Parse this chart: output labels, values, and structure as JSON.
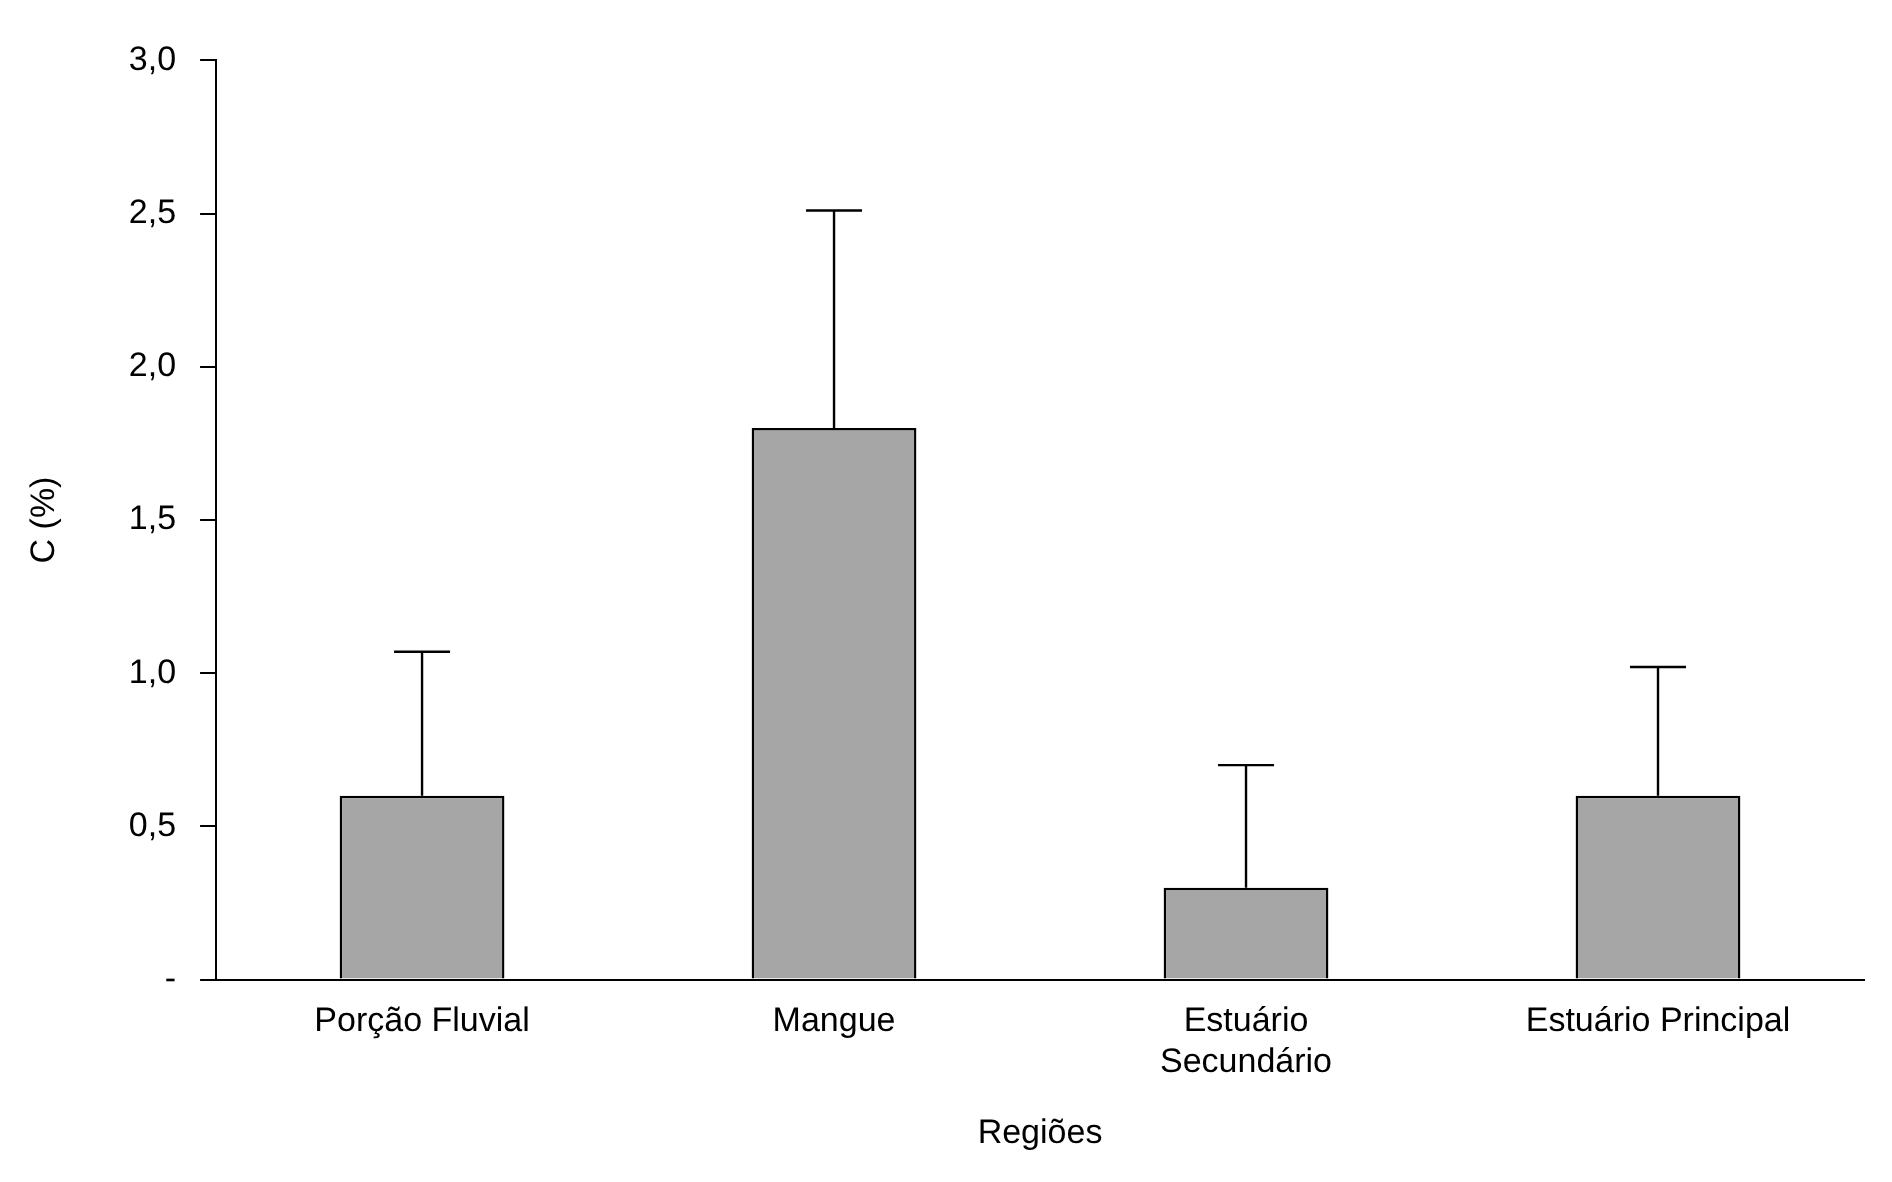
{
  "chart_data": {
    "type": "bar",
    "xlabel": "Regiões",
    "ylabel": "C (%)",
    "categories": [
      "Porção Fluvial",
      "Mangue",
      "Estuário Secundário",
      "Estuário Principal"
    ],
    "values": [
      0.6,
      1.8,
      0.3,
      0.6
    ],
    "errors": [
      [
        0.6,
        1.07
      ],
      [
        1.8,
        2.51
      ],
      [
        0.3,
        0.7
      ],
      [
        0.6,
        1.02
      ]
    ],
    "color": "#a6a6a6",
    "ylim": [
      0,
      3
    ],
    "yticks": [
      {
        "value": 0,
        "label": "-"
      },
      {
        "value": 0.5,
        "label": "0,5"
      },
      {
        "value": 1,
        "label": "1,0"
      },
      {
        "value": 1.5,
        "label": "1,5"
      },
      {
        "value": 2,
        "label": "2,0"
      },
      {
        "value": 2.5,
        "label": "2,5"
      },
      {
        "value": 3,
        "label": "3,0"
      }
    ],
    "grid": false,
    "legend": false
  }
}
